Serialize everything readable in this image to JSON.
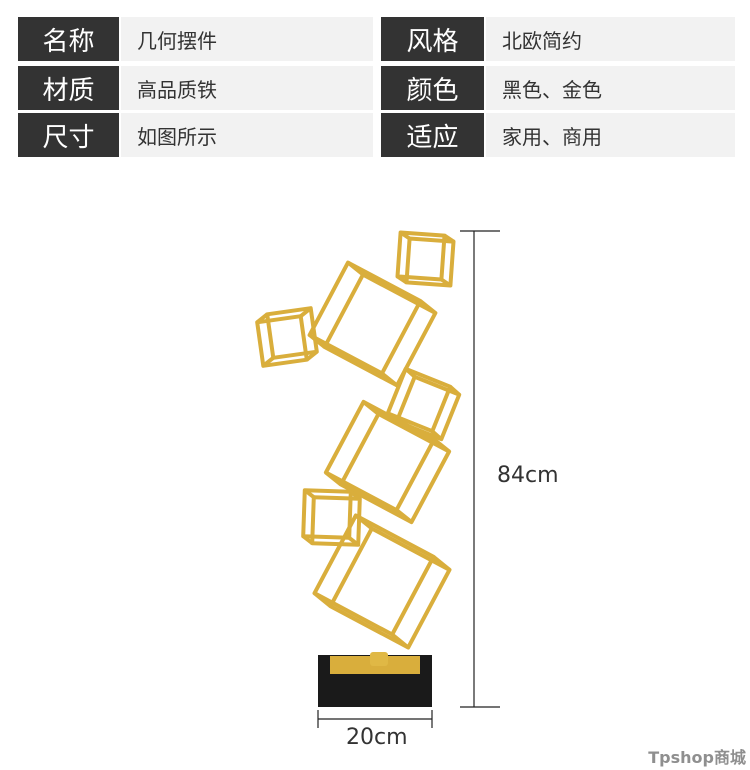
{
  "specs": [
    {
      "label": "名称",
      "value": "几何摆件",
      "label2": "风格",
      "value2": "北欧简约"
    },
    {
      "label": "材质",
      "value": "高品质铁",
      "label2": "颜色",
      "value2": "黑色、金色"
    },
    {
      "label": "尺寸",
      "value": "如图所示",
      "label2": "适应",
      "value2": "家用、商用"
    }
  ],
  "dimensions": {
    "height": "84cm",
    "width": "20cm"
  },
  "colors": {
    "gold": "#d9ae3c",
    "base": "#1a1a1a",
    "label_bg": "#333333",
    "value_bg": "#f2f2f2"
  },
  "watermark": "Tpshop商城"
}
